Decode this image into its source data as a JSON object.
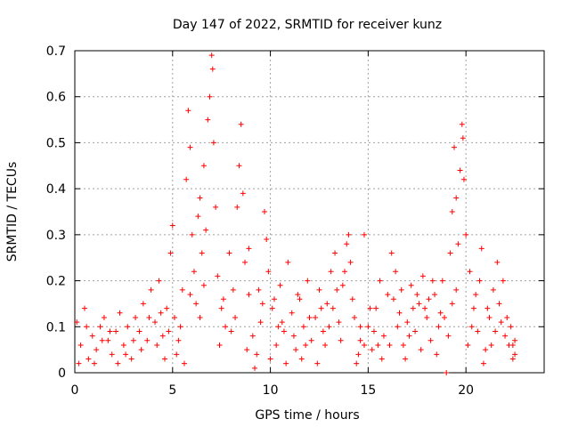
{
  "chart_data": {
    "type": "scatter",
    "title": "Day 147 of 2022, SRMTID for receiver kunz",
    "xlabel": "GPS time / hours",
    "ylabel": "SRMTID / TECUs",
    "xlim": [
      0,
      24
    ],
    "ylim": [
      0,
      0.7
    ],
    "x_ticks": [
      0,
      5,
      10,
      15,
      20
    ],
    "y_ticks": [
      0,
      0.1,
      0.2,
      0.3,
      0.4,
      0.5,
      0.6,
      0.7
    ],
    "x_tick_labels": [
      "0",
      "5",
      "10",
      "15",
      "20"
    ],
    "y_tick_labels": [
      "0",
      "0.1",
      "0.2",
      "0.3",
      "0.4",
      "0.5",
      "0.6",
      "0.7"
    ],
    "grid": true,
    "marker": "plus",
    "color": "#ff0000",
    "series": [
      {
        "name": "SRMTID",
        "points": [
          [
            0.1,
            0.11
          ],
          [
            0.3,
            0.06
          ],
          [
            0.5,
            0.14
          ],
          [
            0.7,
            0.03
          ],
          [
            0.9,
            0.08
          ],
          [
            1.1,
            0.05
          ],
          [
            1.3,
            0.1
          ],
          [
            1.5,
            0.12
          ],
          [
            1.7,
            0.07
          ],
          [
            1.9,
            0.04
          ],
          [
            2.1,
            0.09
          ],
          [
            2.3,
            0.13
          ],
          [
            2.5,
            0.06
          ],
          [
            2.7,
            0.1
          ],
          [
            2.9,
            0.03
          ],
          [
            3.1,
            0.12
          ],
          [
            3.3,
            0.09
          ],
          [
            3.5,
            0.15
          ],
          [
            3.7,
            0.07
          ],
          [
            3.9,
            0.18
          ],
          [
            4.1,
            0.11
          ],
          [
            4.3,
            0.2
          ],
          [
            4.5,
            0.08
          ],
          [
            4.7,
            0.14
          ],
          [
            4.9,
            0.26
          ],
          [
            5.0,
            0.32
          ],
          [
            5.1,
            0.12
          ],
          [
            5.3,
            0.07
          ],
          [
            5.5,
            0.18
          ],
          [
            5.7,
            0.42
          ],
          [
            5.8,
            0.57
          ],
          [
            5.9,
            0.49
          ],
          [
            6.0,
            0.3
          ],
          [
            6.1,
            0.22
          ],
          [
            6.2,
            0.15
          ],
          [
            6.3,
            0.34
          ],
          [
            6.4,
            0.38
          ],
          [
            6.5,
            0.26
          ],
          [
            6.6,
            0.45
          ],
          [
            6.7,
            0.31
          ],
          [
            6.8,
            0.55
          ],
          [
            6.9,
            0.6
          ],
          [
            7.0,
            0.69
          ],
          [
            7.05,
            0.66
          ],
          [
            7.1,
            0.5
          ],
          [
            7.2,
            0.36
          ],
          [
            7.3,
            0.21
          ],
          [
            7.5,
            0.14
          ],
          [
            7.7,
            0.1
          ],
          [
            7.9,
            0.26
          ],
          [
            8.1,
            0.18
          ],
          [
            8.3,
            0.36
          ],
          [
            8.4,
            0.45
          ],
          [
            8.5,
            0.54
          ],
          [
            8.6,
            0.39
          ],
          [
            8.7,
            0.24
          ],
          [
            8.9,
            0.17
          ],
          [
            9.1,
            0.08
          ],
          [
            9.3,
            0.04
          ],
          [
            9.5,
            0.11
          ],
          [
            9.7,
            0.35
          ],
          [
            9.8,
            0.29
          ],
          [
            9.9,
            0.22
          ],
          [
            10.1,
            0.14
          ],
          [
            10.3,
            0.06
          ],
          [
            10.5,
            0.19
          ],
          [
            10.7,
            0.09
          ],
          [
            10.9,
            0.24
          ],
          [
            11.1,
            0.13
          ],
          [
            11.3,
            0.05
          ],
          [
            11.5,
            0.16
          ],
          [
            11.7,
            0.1
          ],
          [
            11.9,
            0.2
          ],
          [
            12.1,
            0.07
          ],
          [
            12.3,
            0.12
          ],
          [
            12.5,
            0.18
          ],
          [
            12.7,
            0.09
          ],
          [
            12.9,
            0.15
          ],
          [
            13.1,
            0.22
          ],
          [
            13.3,
            0.26
          ],
          [
            13.5,
            0.11
          ],
          [
            13.7,
            0.19
          ],
          [
            13.9,
            0.28
          ],
          [
            14.0,
            0.3
          ],
          [
            14.1,
            0.24
          ],
          [
            14.3,
            0.12
          ],
          [
            14.5,
            0.04
          ],
          [
            14.6,
            0.07
          ],
          [
            14.8,
            0.3
          ],
          [
            15.0,
            0.1
          ],
          [
            15.2,
            0.05
          ],
          [
            15.4,
            0.14
          ],
          [
            15.6,
            0.2
          ],
          [
            15.8,
            0.08
          ],
          [
            16.0,
            0.17
          ],
          [
            16.2,
            0.26
          ],
          [
            16.4,
            0.22
          ],
          [
            16.6,
            0.13
          ],
          [
            16.8,
            0.06
          ],
          [
            17.0,
            0.11
          ],
          [
            17.2,
            0.19
          ],
          [
            17.4,
            0.09
          ],
          [
            17.6,
            0.15
          ],
          [
            17.8,
            0.21
          ],
          [
            18.0,
            0.12
          ],
          [
            18.2,
            0.07
          ],
          [
            18.4,
            0.17
          ],
          [
            18.6,
            0.1
          ],
          [
            18.8,
            0.2
          ],
          [
            19.0,
            0.0
          ],
          [
            19.2,
            0.26
          ],
          [
            19.3,
            0.35
          ],
          [
            19.4,
            0.49
          ],
          [
            19.5,
            0.38
          ],
          [
            19.6,
            0.28
          ],
          [
            19.7,
            0.44
          ],
          [
            19.8,
            0.54
          ],
          [
            19.85,
            0.51
          ],
          [
            19.9,
            0.42
          ],
          [
            20.0,
            0.3
          ],
          [
            20.2,
            0.22
          ],
          [
            20.4,
            0.14
          ],
          [
            20.6,
            0.09
          ],
          [
            20.8,
            0.27
          ],
          [
            21.0,
            0.05
          ],
          [
            21.2,
            0.12
          ],
          [
            21.4,
            0.18
          ],
          [
            21.6,
            0.24
          ],
          [
            21.8,
            0.11
          ],
          [
            22.0,
            0.08
          ],
          [
            22.2,
            0.06
          ],
          [
            22.4,
            0.03
          ],
          [
            22.5,
            0.04
          ],
          [
            0.2,
            0.02
          ],
          [
            0.6,
            0.1
          ],
          [
            1.0,
            0.02
          ],
          [
            1.4,
            0.07
          ],
          [
            1.8,
            0.09
          ],
          [
            2.2,
            0.02
          ],
          [
            2.6,
            0.04
          ],
          [
            3.0,
            0.07
          ],
          [
            3.4,
            0.05
          ],
          [
            3.8,
            0.12
          ],
          [
            4.2,
            0.06
          ],
          [
            4.6,
            0.03
          ],
          [
            5.2,
            0.04
          ],
          [
            5.6,
            0.02
          ],
          [
            6.4,
            0.12
          ],
          [
            7.4,
            0.06
          ],
          [
            8.0,
            0.09
          ],
          [
            8.8,
            0.05
          ],
          [
            9.2,
            0.01
          ],
          [
            9.6,
            0.15
          ],
          [
            10.0,
            0.03
          ],
          [
            10.4,
            0.1
          ],
          [
            10.8,
            0.02
          ],
          [
            11.2,
            0.08
          ],
          [
            11.6,
            0.03
          ],
          [
            12.0,
            0.12
          ],
          [
            12.4,
            0.02
          ],
          [
            12.8,
            0.06
          ],
          [
            13.2,
            0.14
          ],
          [
            13.6,
            0.07
          ],
          [
            14.2,
            0.16
          ],
          [
            14.4,
            0.02
          ],
          [
            14.8,
            0.06
          ],
          [
            15.3,
            0.09
          ],
          [
            15.7,
            0.03
          ],
          [
            16.1,
            0.06
          ],
          [
            16.5,
            0.1
          ],
          [
            16.9,
            0.03
          ],
          [
            17.3,
            0.14
          ],
          [
            17.7,
            0.05
          ],
          [
            18.1,
            0.16
          ],
          [
            18.5,
            0.04
          ],
          [
            18.9,
            0.12
          ],
          [
            19.1,
            0.08
          ],
          [
            19.3,
            0.15
          ],
          [
            20.1,
            0.06
          ],
          [
            20.5,
            0.17
          ],
          [
            20.9,
            0.02
          ],
          [
            21.3,
            0.06
          ],
          [
            21.7,
            0.15
          ],
          [
            22.1,
            0.12
          ],
          [
            22.3,
            0.1
          ],
          [
            22.5,
            0.07
          ],
          [
            4.4,
            0.13
          ],
          [
            4.8,
            0.09
          ],
          [
            5.4,
            0.1
          ],
          [
            5.9,
            0.17
          ],
          [
            6.6,
            0.19
          ],
          [
            7.6,
            0.16
          ],
          [
            8.2,
            0.12
          ],
          [
            8.9,
            0.27
          ],
          [
            9.4,
            0.18
          ],
          [
            10.2,
            0.16
          ],
          [
            10.6,
            0.11
          ],
          [
            11.4,
            0.17
          ],
          [
            11.8,
            0.06
          ],
          [
            12.6,
            0.14
          ],
          [
            13.0,
            0.1
          ],
          [
            13.4,
            0.18
          ],
          [
            13.8,
            0.22
          ],
          [
            14.6,
            0.1
          ],
          [
            15.1,
            0.14
          ],
          [
            15.5,
            0.06
          ],
          [
            16.3,
            0.16
          ],
          [
            16.7,
            0.18
          ],
          [
            17.1,
            0.08
          ],
          [
            17.5,
            0.17
          ],
          [
            17.9,
            0.14
          ],
          [
            18.3,
            0.2
          ],
          [
            18.7,
            0.13
          ],
          [
            19.5,
            0.18
          ],
          [
            20.3,
            0.1
          ],
          [
            20.7,
            0.2
          ],
          [
            21.1,
            0.14
          ],
          [
            21.5,
            0.09
          ],
          [
            21.9,
            0.2
          ],
          [
            22.4,
            0.06
          ]
        ]
      }
    ]
  }
}
